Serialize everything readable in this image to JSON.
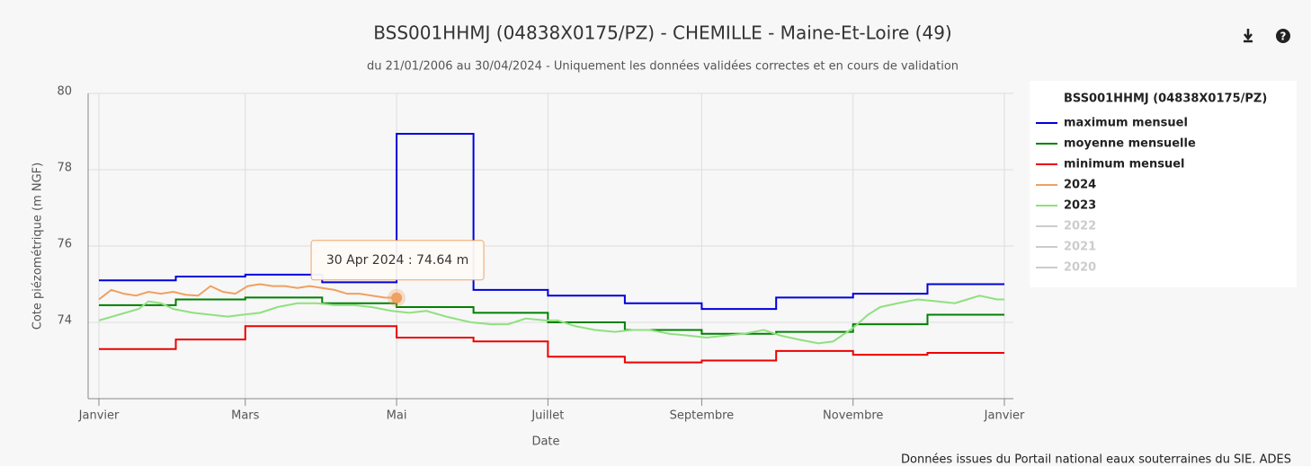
{
  "chart_data": {
    "type": "line",
    "title": "BSS001HHMJ (04838X0175/PZ) - CHEMILLE - Maine-Et-Loire (49)",
    "subtitle": "du 21/01/2006 au 30/04/2024 - Uniquement les données validées correctes et en cours de validation",
    "y_label": "Cote piézométrique (m NGF)",
    "x_label": "Date",
    "legend_title": "BSS001HHMJ (04838X0175/PZ)",
    "legend": "right",
    "credit": "Données issues du Portail national eaux souterraines du SIE. ADES",
    "tooltip": "30 Apr 2024 : 74.64 m",
    "xlim": [
      0,
      365
    ],
    "ylim": [
      72,
      80
    ],
    "yticks": [
      74,
      76,
      78,
      80
    ],
    "grid": true,
    "xticks": [
      {
        "value": 0,
        "label": "Janvier"
      },
      {
        "value": 59,
        "label": "Mars"
      },
      {
        "value": 120,
        "label": "Mai"
      },
      {
        "value": 181,
        "label": "Juillet"
      },
      {
        "value": 243,
        "label": "Septembre"
      },
      {
        "value": 304,
        "label": "Novembre"
      },
      {
        "value": 365,
        "label": "Janvier"
      }
    ],
    "series": [
      {
        "name": "maximum mensuel",
        "color": "#0000dd",
        "step": true,
        "x": [
          0,
          31,
          59,
          90,
          120,
          151,
          181,
          212,
          243,
          273,
          304,
          334
        ],
        "values": [
          75.1,
          75.2,
          75.25,
          75.05,
          78.94,
          74.85,
          74.7,
          74.5,
          74.35,
          74.65,
          74.75,
          75.0
        ]
      },
      {
        "name": "moyenne mensuelle",
        "color": "#008000",
        "step": true,
        "x": [
          0,
          31,
          59,
          90,
          120,
          151,
          181,
          212,
          243,
          273,
          304,
          334
        ],
        "values": [
          74.45,
          74.6,
          74.65,
          74.5,
          74.4,
          74.25,
          74.0,
          73.8,
          73.7,
          73.75,
          73.95,
          74.2
        ]
      },
      {
        "name": "minimum mensuel",
        "color": "#ee0000",
        "step": true,
        "x": [
          0,
          31,
          59,
          90,
          120,
          151,
          181,
          212,
          243,
          273,
          304,
          334
        ],
        "values": [
          73.3,
          73.55,
          73.9,
          73.9,
          73.6,
          73.5,
          73.1,
          72.95,
          73.0,
          73.25,
          73.15,
          73.2
        ]
      },
      {
        "name": "2024",
        "color": "#f0a060",
        "x": [
          0,
          5,
          10,
          15,
          20,
          25,
          30,
          35,
          40,
          45,
          50,
          55,
          60,
          65,
          70,
          75,
          80,
          85,
          90,
          95,
          100,
          105,
          110,
          115,
          120
        ],
        "values": [
          74.6,
          74.85,
          74.75,
          74.7,
          74.8,
          74.75,
          74.8,
          74.72,
          74.7,
          74.95,
          74.8,
          74.75,
          74.95,
          75.0,
          74.95,
          74.95,
          74.9,
          74.95,
          74.9,
          74.85,
          74.75,
          74.75,
          74.7,
          74.65,
          74.64
        ]
      },
      {
        "name": "2023",
        "color": "#90e080",
        "x": [
          0,
          8,
          16,
          20,
          25,
          30,
          38,
          45,
          52,
          58,
          65,
          72,
          80,
          88,
          95,
          103,
          110,
          118,
          125,
          132,
          140,
          150,
          158,
          165,
          172,
          180,
          185,
          192,
          200,
          208,
          215,
          222,
          230,
          238,
          245,
          252,
          260,
          268,
          275,
          282,
          290,
          296,
          304,
          310,
          315,
          322,
          330,
          338,
          345,
          350,
          355,
          362,
          365
        ],
        "values": [
          74.05,
          74.2,
          74.35,
          74.55,
          74.5,
          74.35,
          74.25,
          74.2,
          74.15,
          74.2,
          74.25,
          74.4,
          74.5,
          74.5,
          74.45,
          74.45,
          74.4,
          74.3,
          74.25,
          74.3,
          74.15,
          74.0,
          73.95,
          73.95,
          74.1,
          74.05,
          74.05,
          73.9,
          73.8,
          73.75,
          73.8,
          73.8,
          73.7,
          73.65,
          73.6,
          73.65,
          73.7,
          73.8,
          73.65,
          73.55,
          73.45,
          73.5,
          73.85,
          74.2,
          74.4,
          74.5,
          74.6,
          74.55,
          74.5,
          74.6,
          74.7,
          74.6,
          74.6
        ]
      },
      {
        "name": "2022",
        "color": "#cccccc",
        "visible": false
      },
      {
        "name": "2021",
        "color": "#cccccc",
        "visible": false
      },
      {
        "name": "2020",
        "color": "#cccccc",
        "visible": false
      }
    ]
  }
}
